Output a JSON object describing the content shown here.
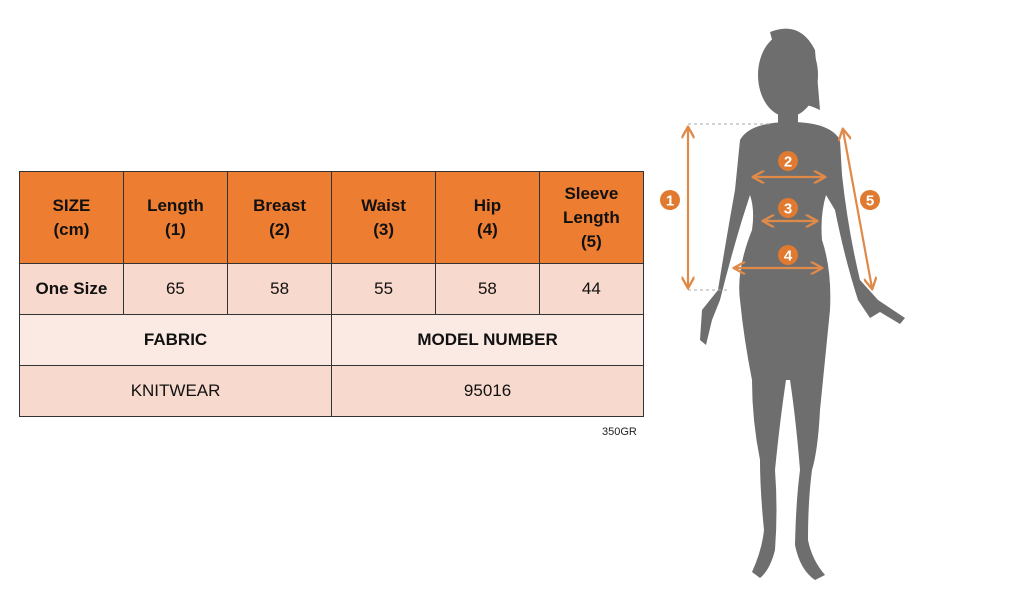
{
  "table": {
    "headers": [
      [
        "SIZE",
        "(cm)"
      ],
      [
        "Length",
        "(1)"
      ],
      [
        "Breast",
        "(2)"
      ],
      [
        "Waist",
        "(3)"
      ],
      [
        "Hip",
        "(4)"
      ],
      [
        "Sleeve",
        "Length",
        "(5)"
      ]
    ],
    "row": {
      "size": "One Size",
      "values": [
        "65",
        "58",
        "55",
        "58",
        "44"
      ]
    },
    "fabric_label": "FABRIC",
    "model_label": "MODEL NUMBER",
    "fabric_value": "KNITWEAR",
    "model_value": "95016"
  },
  "weight": "350GR",
  "figure": {
    "markers": [
      "1",
      "2",
      "3",
      "4",
      "5"
    ]
  },
  "colors": {
    "accent": "#ED7D31",
    "row": "#F8D9CD",
    "label_row": "#FBEAE4",
    "silhouette": "#6E6E6E"
  }
}
